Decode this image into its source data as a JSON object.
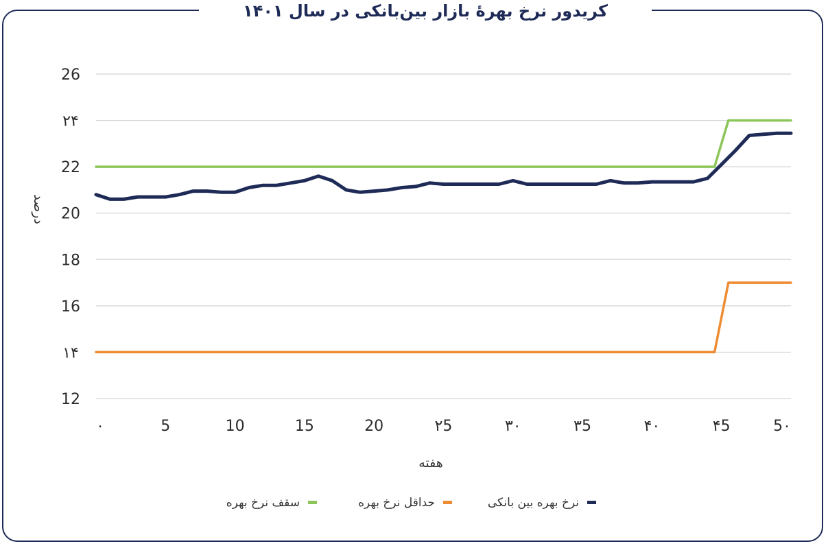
{
  "chart_data": {
    "type": "line",
    "title": "کریدور نرخ بهرهٔ بازار بین‌بانکی در سال ۱۴۰۱",
    "xlabel": "هفته",
    "ylabel": "درصد",
    "xlim": [
      0,
      50
    ],
    "ylim": [
      12,
      26
    ],
    "y_ticks": [
      12,
      14,
      16,
      18,
      20,
      22,
      24,
      26
    ],
    "y_tick_labels": [
      "12",
      "۱۴",
      "16",
      "18",
      "20",
      "22",
      "۲۴",
      "26"
    ],
    "x_ticks": [
      0,
      5,
      10,
      15,
      20,
      25,
      30,
      35,
      40,
      45,
      50
    ],
    "x_tick_labels": [
      "۰",
      "5",
      "10",
      "15",
      "20",
      "۲5",
      "۳۰",
      "۳5",
      "۴۰",
      "۴5",
      "5۰"
    ],
    "grid": true,
    "legend_position": "bottom",
    "series": [
      {
        "name": "نرخ بهره بین بانکی",
        "color": "#1f2b57",
        "x": [
          0,
          1,
          2,
          3,
          4,
          5,
          6,
          7,
          8,
          9,
          10,
          11,
          12,
          13,
          14,
          15,
          16,
          17,
          18,
          19,
          20,
          21,
          22,
          23,
          24,
          25,
          26,
          27,
          28,
          29,
          30,
          31,
          32,
          33,
          34,
          35,
          36,
          37,
          38,
          39,
          40,
          41,
          42,
          43,
          44,
          45,
          46,
          47,
          48,
          49,
          50
        ],
        "values": [
          20.8,
          20.6,
          20.6,
          20.7,
          20.7,
          20.7,
          20.8,
          20.95,
          20.95,
          20.9,
          20.9,
          21.1,
          21.2,
          21.2,
          21.3,
          21.4,
          21.6,
          21.4,
          21.0,
          20.9,
          20.95,
          21.0,
          21.1,
          21.15,
          21.3,
          21.25,
          21.25,
          21.25,
          21.25,
          21.25,
          21.4,
          21.25,
          21.25,
          21.25,
          21.25,
          21.25,
          21.25,
          21.4,
          21.3,
          21.3,
          21.35,
          21.35,
          21.35,
          21.35,
          21.5,
          22.1,
          22.7,
          23.35,
          23.4,
          23.45,
          23.45
        ]
      },
      {
        "name": "حداقل نرخ بهره",
        "color": "#ee8c33",
        "x": [
          0,
          44.5,
          45.5,
          50
        ],
        "values": [
          14,
          14,
          17,
          17
        ]
      },
      {
        "name": "سقف نرخ بهره",
        "color": "#8cc65b",
        "x": [
          0,
          44.5,
          45.5,
          50
        ],
        "values": [
          22,
          22,
          24,
          24
        ]
      }
    ]
  }
}
